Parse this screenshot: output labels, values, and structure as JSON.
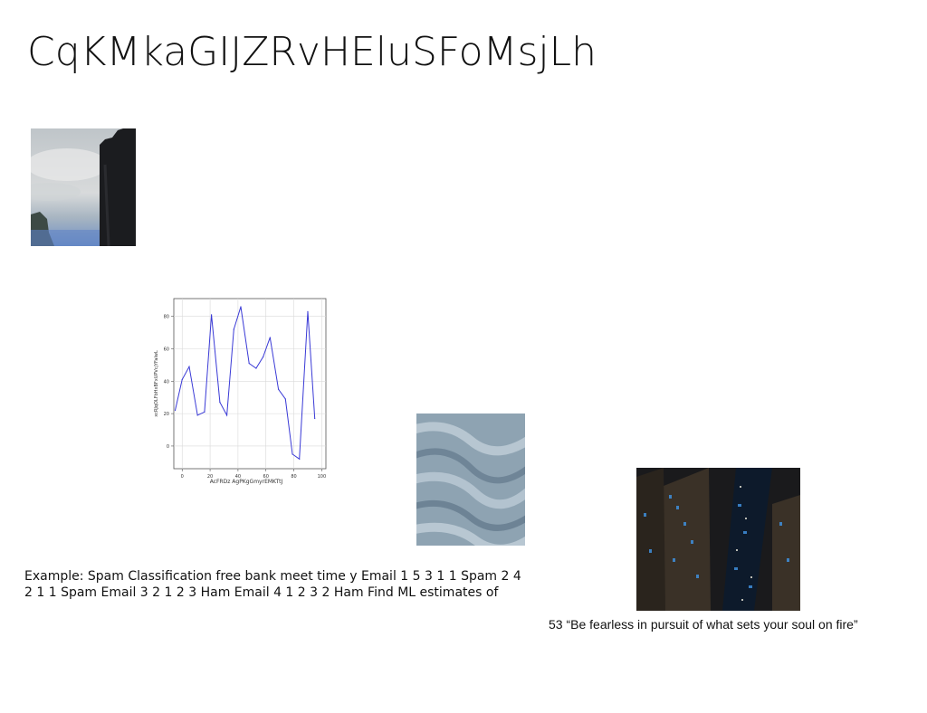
{
  "slide": {
    "title": "CqKMkaGIJZRvHEluSFoMsjLh",
    "body_text": "Example: Spam Classification free bank meet time y Email 1 5 3 1 1 Spam 2 4 2 1 1 Spam Email 3 2 1 2 3 Ham Email 4 1 2 3 2 Ham Find ML estimates of",
    "quote": "53 “Be fearless in pursuit of what sets your soul on fire”"
  },
  "chart_data": {
    "type": "line",
    "title": "",
    "xlabel": "AcFRDz AgPKgGmyrEMKTtJ",
    "ylabel": "xcRJqOLFbHxBFxUPVcjYFalwL",
    "xlim": [
      -6,
      103
    ],
    "ylim": [
      -14,
      91
    ],
    "grid": true,
    "xticks": [
      0,
      20,
      40,
      60,
      80,
      100
    ],
    "yticks": [
      0,
      20,
      40,
      60,
      80
    ],
    "series": [
      {
        "color": "#3a3ad6",
        "x": [
          -5,
          0,
          5,
          11,
          16,
          21,
          27,
          32,
          37,
          42,
          48,
          53,
          58,
          63,
          69,
          74,
          79,
          84,
          90,
          95
        ],
        "y": [
          22,
          41,
          49,
          19,
          21,
          81,
          27,
          19,
          72,
          86,
          51,
          48,
          55,
          67,
          35,
          29,
          -5,
          -8,
          83,
          17
        ]
      }
    ]
  }
}
